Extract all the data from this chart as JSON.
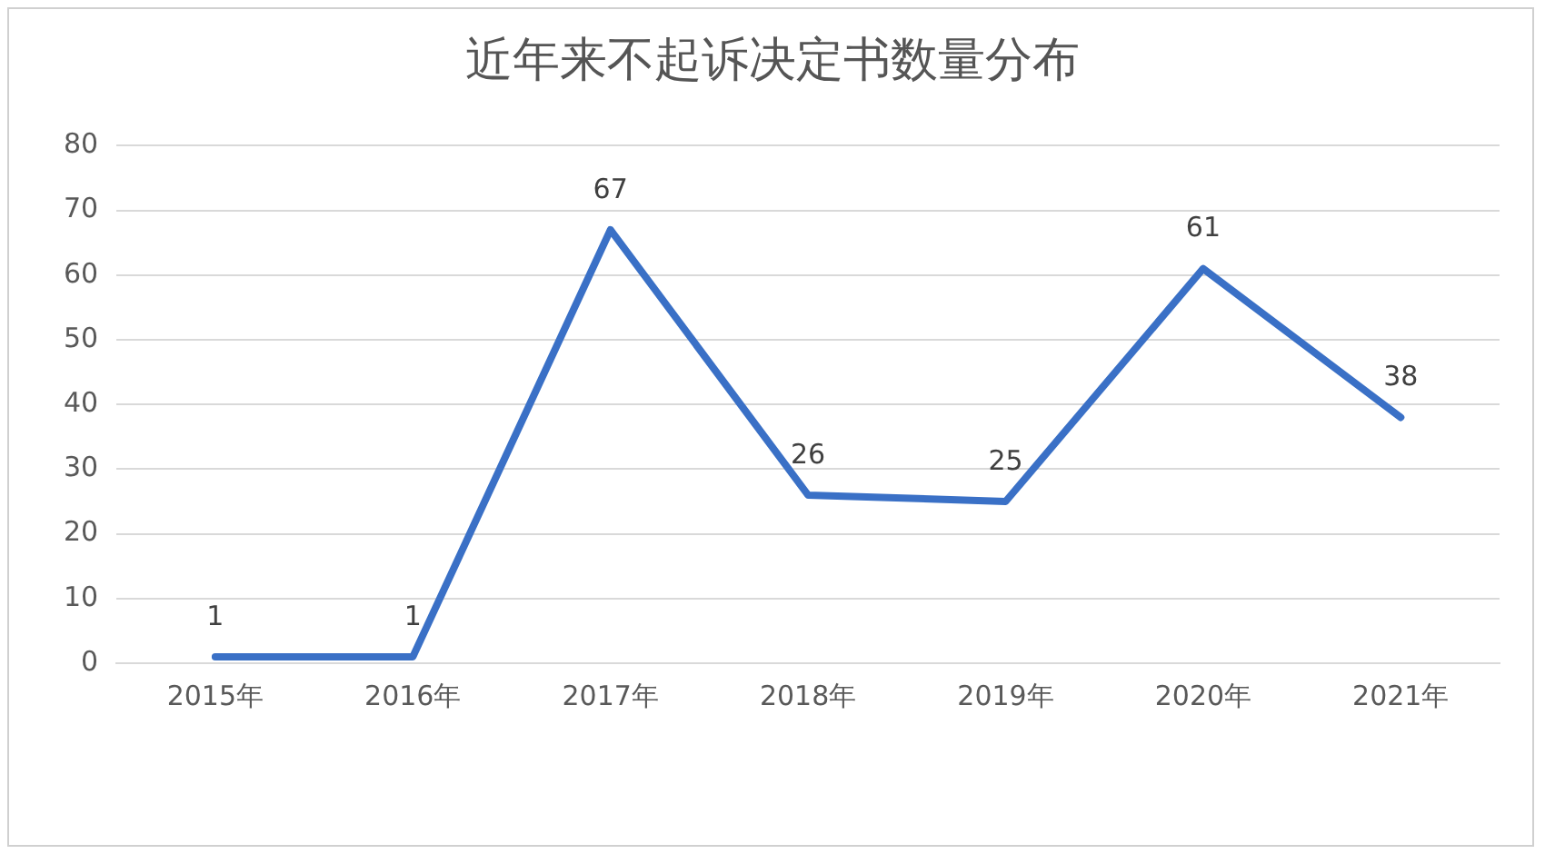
{
  "chart_data": {
    "type": "line",
    "title": "近年来不起诉决定书数量分布",
    "categories": [
      "2015年",
      "2016年",
      "2017年",
      "2018年",
      "2019年",
      "2020年",
      "2021年"
    ],
    "series": [
      {
        "color": "#3a70c6",
        "values": [
          1,
          1,
          67,
          26,
          25,
          61,
          38
        ]
      }
    ],
    "ylim": [
      0,
      80
    ],
    "yticks": [
      0,
      10,
      20,
      30,
      40,
      50,
      60,
      70,
      80
    ],
    "grid": "y",
    "legend": false,
    "marker": "none",
    "line_style": "solid",
    "data_labels": true
  }
}
